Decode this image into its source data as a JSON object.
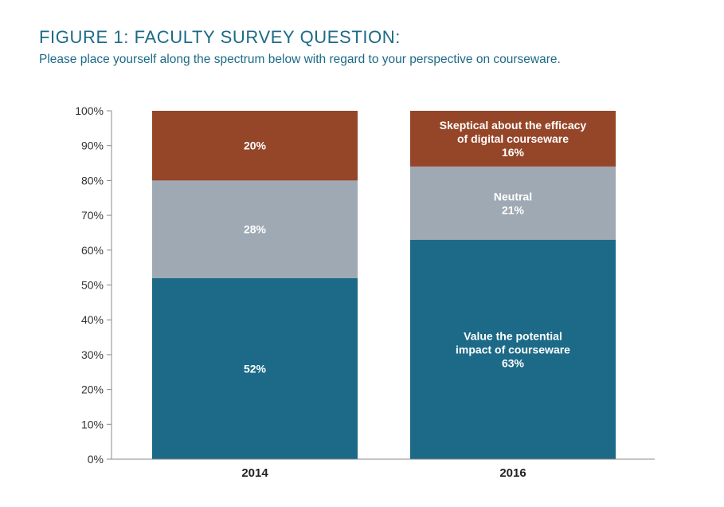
{
  "title": "FIGURE 1: FACULTY SURVEY QUESTION:",
  "subtitle": "Please place yourself along the spectrum below with regard to your perspective on courseware.",
  "chart_data": {
    "type": "bar",
    "stacked": true,
    "categories": [
      "2014",
      "2016"
    ],
    "y_ticks": [
      "0%",
      "10%",
      "20%",
      "30%",
      "40%",
      "50%",
      "60%",
      "70%",
      "80%",
      "90%",
      "100%"
    ],
    "ylim": [
      0,
      100
    ],
    "grid": false,
    "series": [
      {
        "key": "value",
        "values": [
          52,
          63
        ],
        "value_labels": [
          "52%",
          "63%"
        ],
        "color": "#1c6a87",
        "label_lines": [
          [],
          [
            "Value the potential",
            "impact of courseware"
          ]
        ]
      },
      {
        "key": "neutral",
        "values": [
          28,
          21
        ],
        "value_labels": [
          "28%",
          "21%"
        ],
        "color": "#9fa9b4",
        "label_lines": [
          [],
          [
            "Neutral"
          ]
        ]
      },
      {
        "key": "skeptical",
        "values": [
          20,
          16
        ],
        "value_labels": [
          "20%",
          "16%"
        ],
        "color": "#954629",
        "label_lines": [
          [],
          [
            "Skeptical about the efficacy",
            "of digital courseware"
          ]
        ]
      }
    ],
    "axis_color": "#888888"
  }
}
